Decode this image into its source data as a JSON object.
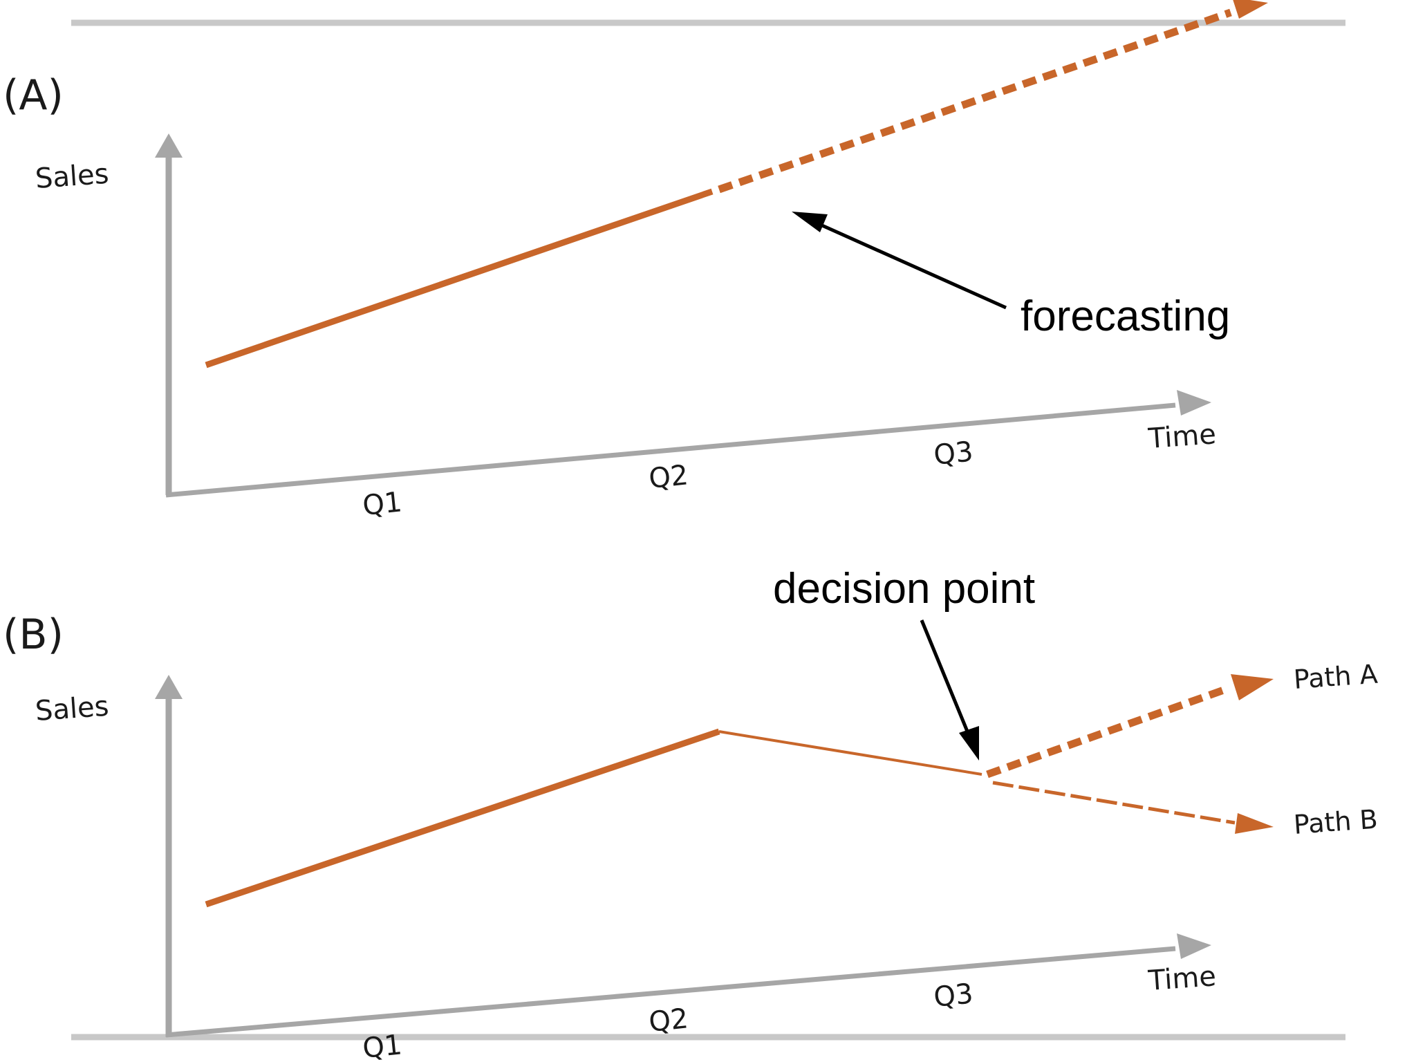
{
  "colors": {
    "trend": "#c8662a",
    "axis": "#a6a6a6",
    "frame": "#c8c8c8",
    "text": "#1a1a1a",
    "annotation": "#000000"
  },
  "panel_a": {
    "label": "(A)",
    "y_label": "Sales",
    "x_label": "Time",
    "ticks": [
      "Q1",
      "Q2",
      "Q3"
    ],
    "annotation": "forecasting"
  },
  "panel_b": {
    "label": "(B)",
    "y_label": "Sales",
    "x_label": "Time",
    "ticks": [
      "Q1",
      "Q2",
      "Q3"
    ],
    "annotation": "decision point",
    "path_a_label": "Path A",
    "path_b_label": "Path B"
  }
}
